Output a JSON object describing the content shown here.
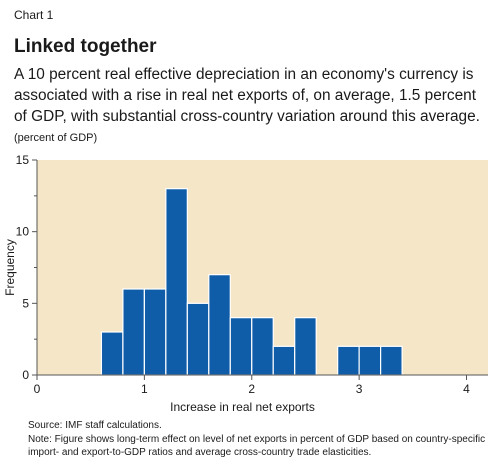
{
  "header": {
    "chart_number": "Chart 1",
    "title": "Linked together",
    "subtitle": "A 10 percent real effective depreciation in an economy's currency is associated with a rise in real net exports of, on average, 1.5 percent of GDP, with substantial cross-country variation around this average.",
    "unit_note": "(percent of GDP)"
  },
  "footer": {
    "source": "Source: IMF staff calculations.",
    "note": "Note: Figure shows long-term effect on level of net exports in percent of GDP based on country-specific import- and export-to-GDP ratios and average cross-country trade elasticities."
  },
  "colors": {
    "plot_background": "#f6e6c8",
    "bar_fill": "#0f5ca8",
    "bar_stroke": "#ffffff",
    "axis": "#555555"
  },
  "chart_data": {
    "type": "bar",
    "subtype": "histogram",
    "xlabel": "Increase in real net exports",
    "ylabel": "Frequency",
    "xlim": [
      0,
      4.2
    ],
    "ylim": [
      0,
      15
    ],
    "xticks": [
      0,
      1,
      2,
      3,
      4
    ],
    "yticks": [
      0,
      5,
      10,
      15
    ],
    "yminor_ticks": [
      2.5,
      7.5,
      12.5
    ],
    "bin_width": 0.2,
    "bins": [
      {
        "start": 0.6,
        "end": 0.8,
        "count": 3
      },
      {
        "start": 0.8,
        "end": 1.0,
        "count": 6
      },
      {
        "start": 1.0,
        "end": 1.2,
        "count": 6
      },
      {
        "start": 1.2,
        "end": 1.4,
        "count": 13
      },
      {
        "start": 1.4,
        "end": 1.6,
        "count": 5
      },
      {
        "start": 1.6,
        "end": 1.8,
        "count": 7
      },
      {
        "start": 1.8,
        "end": 2.0,
        "count": 4
      },
      {
        "start": 2.0,
        "end": 2.2,
        "count": 4
      },
      {
        "start": 2.2,
        "end": 2.4,
        "count": 2
      },
      {
        "start": 2.4,
        "end": 2.6,
        "count": 4
      },
      {
        "start": 2.8,
        "end": 3.0,
        "count": 2
      },
      {
        "start": 3.0,
        "end": 3.2,
        "count": 2
      },
      {
        "start": 3.2,
        "end": 3.4,
        "count": 2
      }
    ],
    "grid": false,
    "legend": "none"
  }
}
